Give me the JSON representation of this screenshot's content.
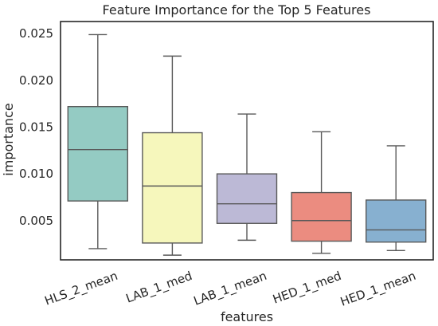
{
  "chart_data": {
    "type": "box",
    "title": "Feature Importance for the Top 5 Features",
    "xlabel": "features",
    "ylabel": "importance",
    "ylim": [
      0.0008,
      0.0263
    ],
    "yticks": [
      {
        "value": 0.005,
        "label": "0.005"
      },
      {
        "value": 0.01,
        "label": "0.010"
      },
      {
        "value": 0.015,
        "label": "0.015"
      },
      {
        "value": 0.02,
        "label": "0.020"
      },
      {
        "value": 0.025,
        "label": "0.025"
      }
    ],
    "grid": false,
    "categories": [
      "HLS_2_mean",
      "LAB_1_med",
      "LAB_1_mean",
      "HED_1_med",
      "HED_1_mean"
    ],
    "boxes": [
      {
        "min": 0.002,
        "q1": 0.0071,
        "median": 0.0126,
        "q3": 0.0172,
        "max": 0.0249,
        "color": "#94cbc3"
      },
      {
        "min": 0.0013,
        "q1": 0.0026,
        "median": 0.0087,
        "q3": 0.0144,
        "max": 0.0226,
        "color": "#f6f7bc"
      },
      {
        "min": 0.0029,
        "q1": 0.0047,
        "median": 0.0068,
        "q3": 0.01,
        "max": 0.0164,
        "color": "#bcb9d6"
      },
      {
        "min": 0.0015,
        "q1": 0.0028,
        "median": 0.005,
        "q3": 0.008,
        "max": 0.0145,
        "color": "#eb8c80"
      },
      {
        "min": 0.0018,
        "q1": 0.0027,
        "median": 0.004,
        "q3": 0.0072,
        "max": 0.013,
        "color": "#87b0d0"
      }
    ],
    "line_color": "#595959"
  }
}
